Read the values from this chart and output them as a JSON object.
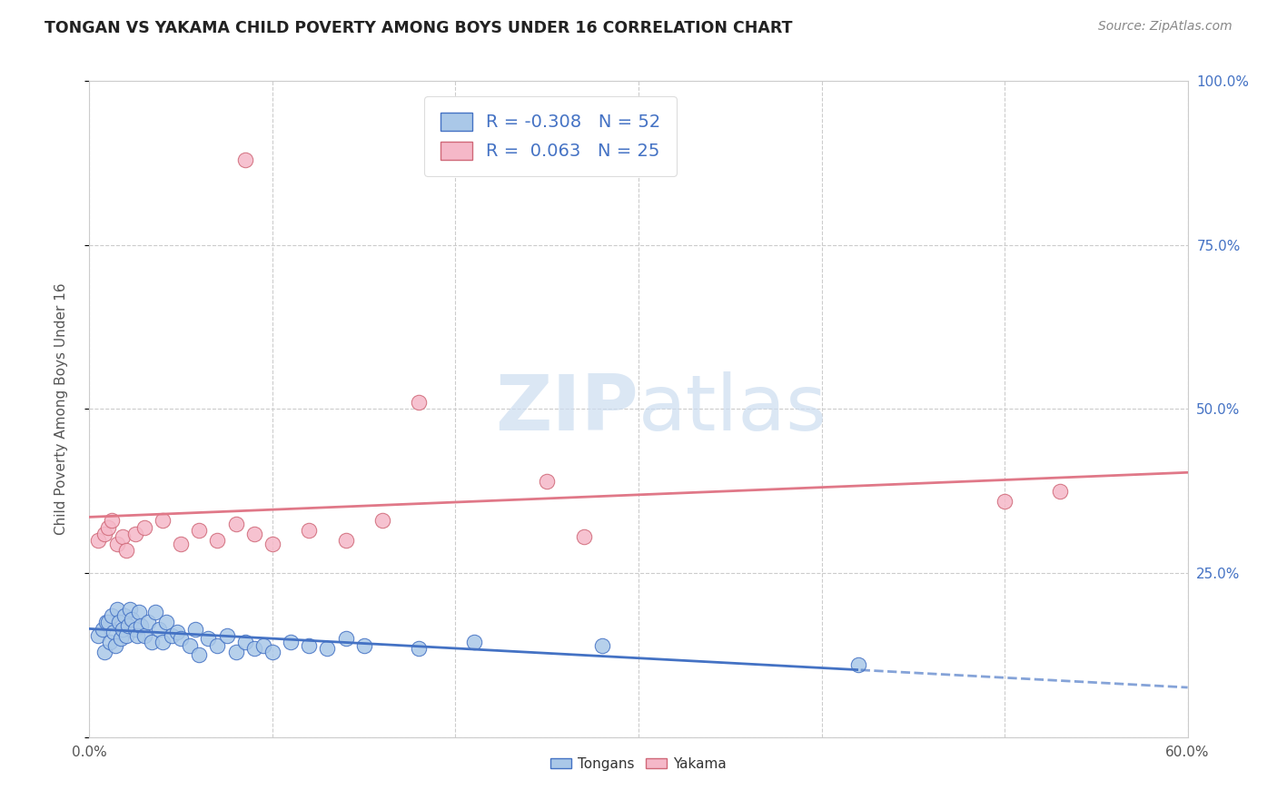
{
  "title": "TONGAN VS YAKAMA CHILD POVERTY AMONG BOYS UNDER 16 CORRELATION CHART",
  "source": "Source: ZipAtlas.com",
  "ylabel_label": "Child Poverty Among Boys Under 16",
  "xlim": [
    0.0,
    0.6
  ],
  "ylim": [
    0.0,
    1.0
  ],
  "right_ytick_labels": [
    "",
    "25.0%",
    "50.0%",
    "75.0%",
    "100.0%"
  ],
  "bottom_xticklabels": [
    "0.0%",
    "",
    "",
    "",
    "",
    "",
    "60.0%"
  ],
  "tongan_color": "#aac8e8",
  "tongan_edge_color": "#4472c4",
  "yakama_color": "#f5b8c8",
  "yakama_edge_color": "#d06878",
  "tongan_line_color": "#4472c4",
  "yakama_line_color": "#e07888",
  "grid_color": "#cccccc",
  "bg_color": "#ffffff",
  "legend_r_blue": "-0.308",
  "legend_n_blue": "52",
  "legend_r_pink": "0.063",
  "legend_n_pink": "25",
  "label_color_blue": "#4472c4",
  "label_color_axis": "#555555",
  "watermark_color": "#ccddf0",
  "title_color": "#222222",
  "source_color": "#888888",
  "tongans_x": [
    0.005,
    0.007,
    0.008,
    0.009,
    0.01,
    0.011,
    0.012,
    0.013,
    0.014,
    0.015,
    0.016,
    0.017,
    0.018,
    0.019,
    0.02,
    0.021,
    0.022,
    0.023,
    0.025,
    0.026,
    0.027,
    0.028,
    0.03,
    0.032,
    0.034,
    0.036,
    0.038,
    0.04,
    0.042,
    0.045,
    0.048,
    0.05,
    0.055,
    0.058,
    0.06,
    0.065,
    0.07,
    0.075,
    0.08,
    0.085,
    0.09,
    0.095,
    0.1,
    0.11,
    0.12,
    0.13,
    0.14,
    0.15,
    0.18,
    0.21,
    0.28,
    0.42
  ],
  "tongans_y": [
    0.155,
    0.165,
    0.13,
    0.175,
    0.175,
    0.145,
    0.185,
    0.16,
    0.14,
    0.195,
    0.175,
    0.15,
    0.165,
    0.185,
    0.155,
    0.17,
    0.195,
    0.18,
    0.165,
    0.155,
    0.19,
    0.17,
    0.155,
    0.175,
    0.145,
    0.19,
    0.165,
    0.145,
    0.175,
    0.155,
    0.16,
    0.15,
    0.14,
    0.165,
    0.125,
    0.15,
    0.14,
    0.155,
    0.13,
    0.145,
    0.135,
    0.14,
    0.13,
    0.145,
    0.14,
    0.135,
    0.15,
    0.14,
    0.135,
    0.145,
    0.14,
    0.11
  ],
  "yakama_x": [
    0.005,
    0.008,
    0.01,
    0.012,
    0.015,
    0.018,
    0.02,
    0.025,
    0.03,
    0.04,
    0.05,
    0.06,
    0.07,
    0.08,
    0.085,
    0.09,
    0.1,
    0.12,
    0.14,
    0.16,
    0.18,
    0.25,
    0.27,
    0.5,
    0.53
  ],
  "yakama_y": [
    0.3,
    0.31,
    0.32,
    0.33,
    0.295,
    0.305,
    0.285,
    0.31,
    0.32,
    0.33,
    0.295,
    0.315,
    0.3,
    0.325,
    0.88,
    0.31,
    0.295,
    0.315,
    0.3,
    0.33,
    0.51,
    0.39,
    0.305,
    0.36,
    0.375
  ]
}
